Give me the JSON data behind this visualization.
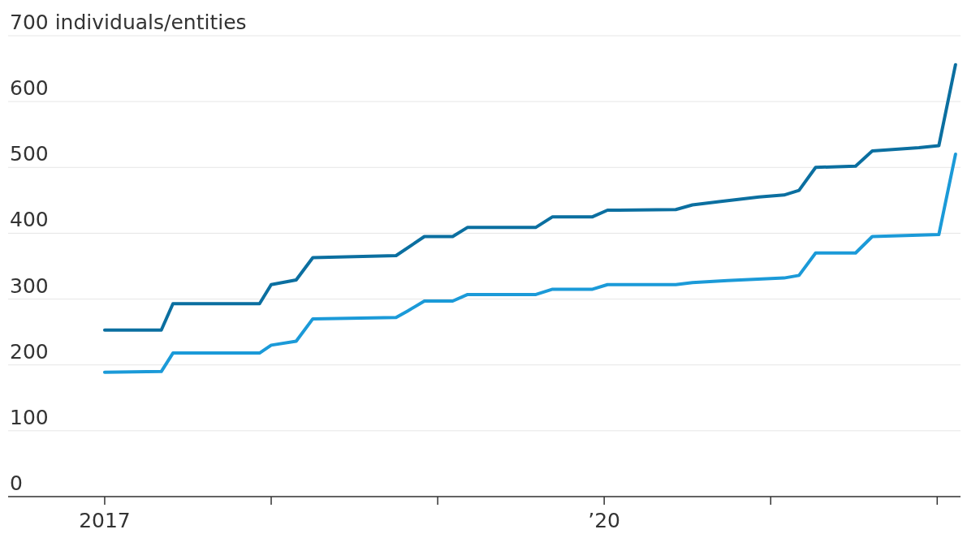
{
  "chart_data": {
    "type": "line",
    "xlim": [
      2016.42,
      2022.14
    ],
    "xticks": [
      {
        "value": 2017,
        "label": "2017"
      },
      {
        "value": 2018,
        "label": null
      },
      {
        "value": 2019,
        "label": null
      },
      {
        "value": 2020,
        "label": "’20"
      },
      {
        "value": 2021,
        "label": null
      },
      {
        "value": 2022,
        "label": null
      }
    ],
    "ylim": [
      0,
      700
    ],
    "yticks": [
      0,
      100,
      200,
      300,
      400,
      500,
      600,
      {
        "value": 700,
        "label": "700 individuals/entities"
      }
    ],
    "grid": "y",
    "marker": "none",
    "line_style": "solid",
    "series": [
      {
        "color": "#0b6fa0",
        "x": [
          2017.0,
          2017.34,
          2017.41,
          2017.93,
          2018.0,
          2018.15,
          2018.25,
          2018.75,
          2018.92,
          2019.09,
          2019.18,
          2019.59,
          2019.69,
          2019.93,
          2020.02,
          2020.43,
          2020.53,
          2020.69,
          2020.93,
          2021.08,
          2021.17,
          2021.27,
          2021.51,
          2021.61,
          2021.89,
          2022.01,
          2022.11
        ],
        "values": [
          253,
          253,
          293,
          293,
          322,
          329,
          363,
          366,
          395,
          395,
          409,
          409,
          425,
          425,
          435,
          436,
          443,
          448,
          455,
          458,
          465,
          500,
          502,
          525,
          530,
          533,
          656
        ]
      },
      {
        "color": "#1b9ad8",
        "x": [
          2017.0,
          2017.34,
          2017.41,
          2017.93,
          2018.0,
          2018.15,
          2018.25,
          2018.75,
          2018.82,
          2018.92,
          2019.09,
          2019.18,
          2019.59,
          2019.69,
          2019.93,
          2020.02,
          2020.43,
          2020.53,
          2020.74,
          2021.08,
          2021.17,
          2021.27,
          2021.51,
          2021.61,
          2022.01,
          2022.11
        ],
        "values": [
          189,
          190,
          218,
          218,
          230,
          236,
          270,
          272,
          282,
          297,
          297,
          307,
          307,
          315,
          315,
          322,
          322,
          325,
          328,
          332,
          336,
          370,
          370,
          395,
          398,
          520
        ]
      }
    ]
  }
}
